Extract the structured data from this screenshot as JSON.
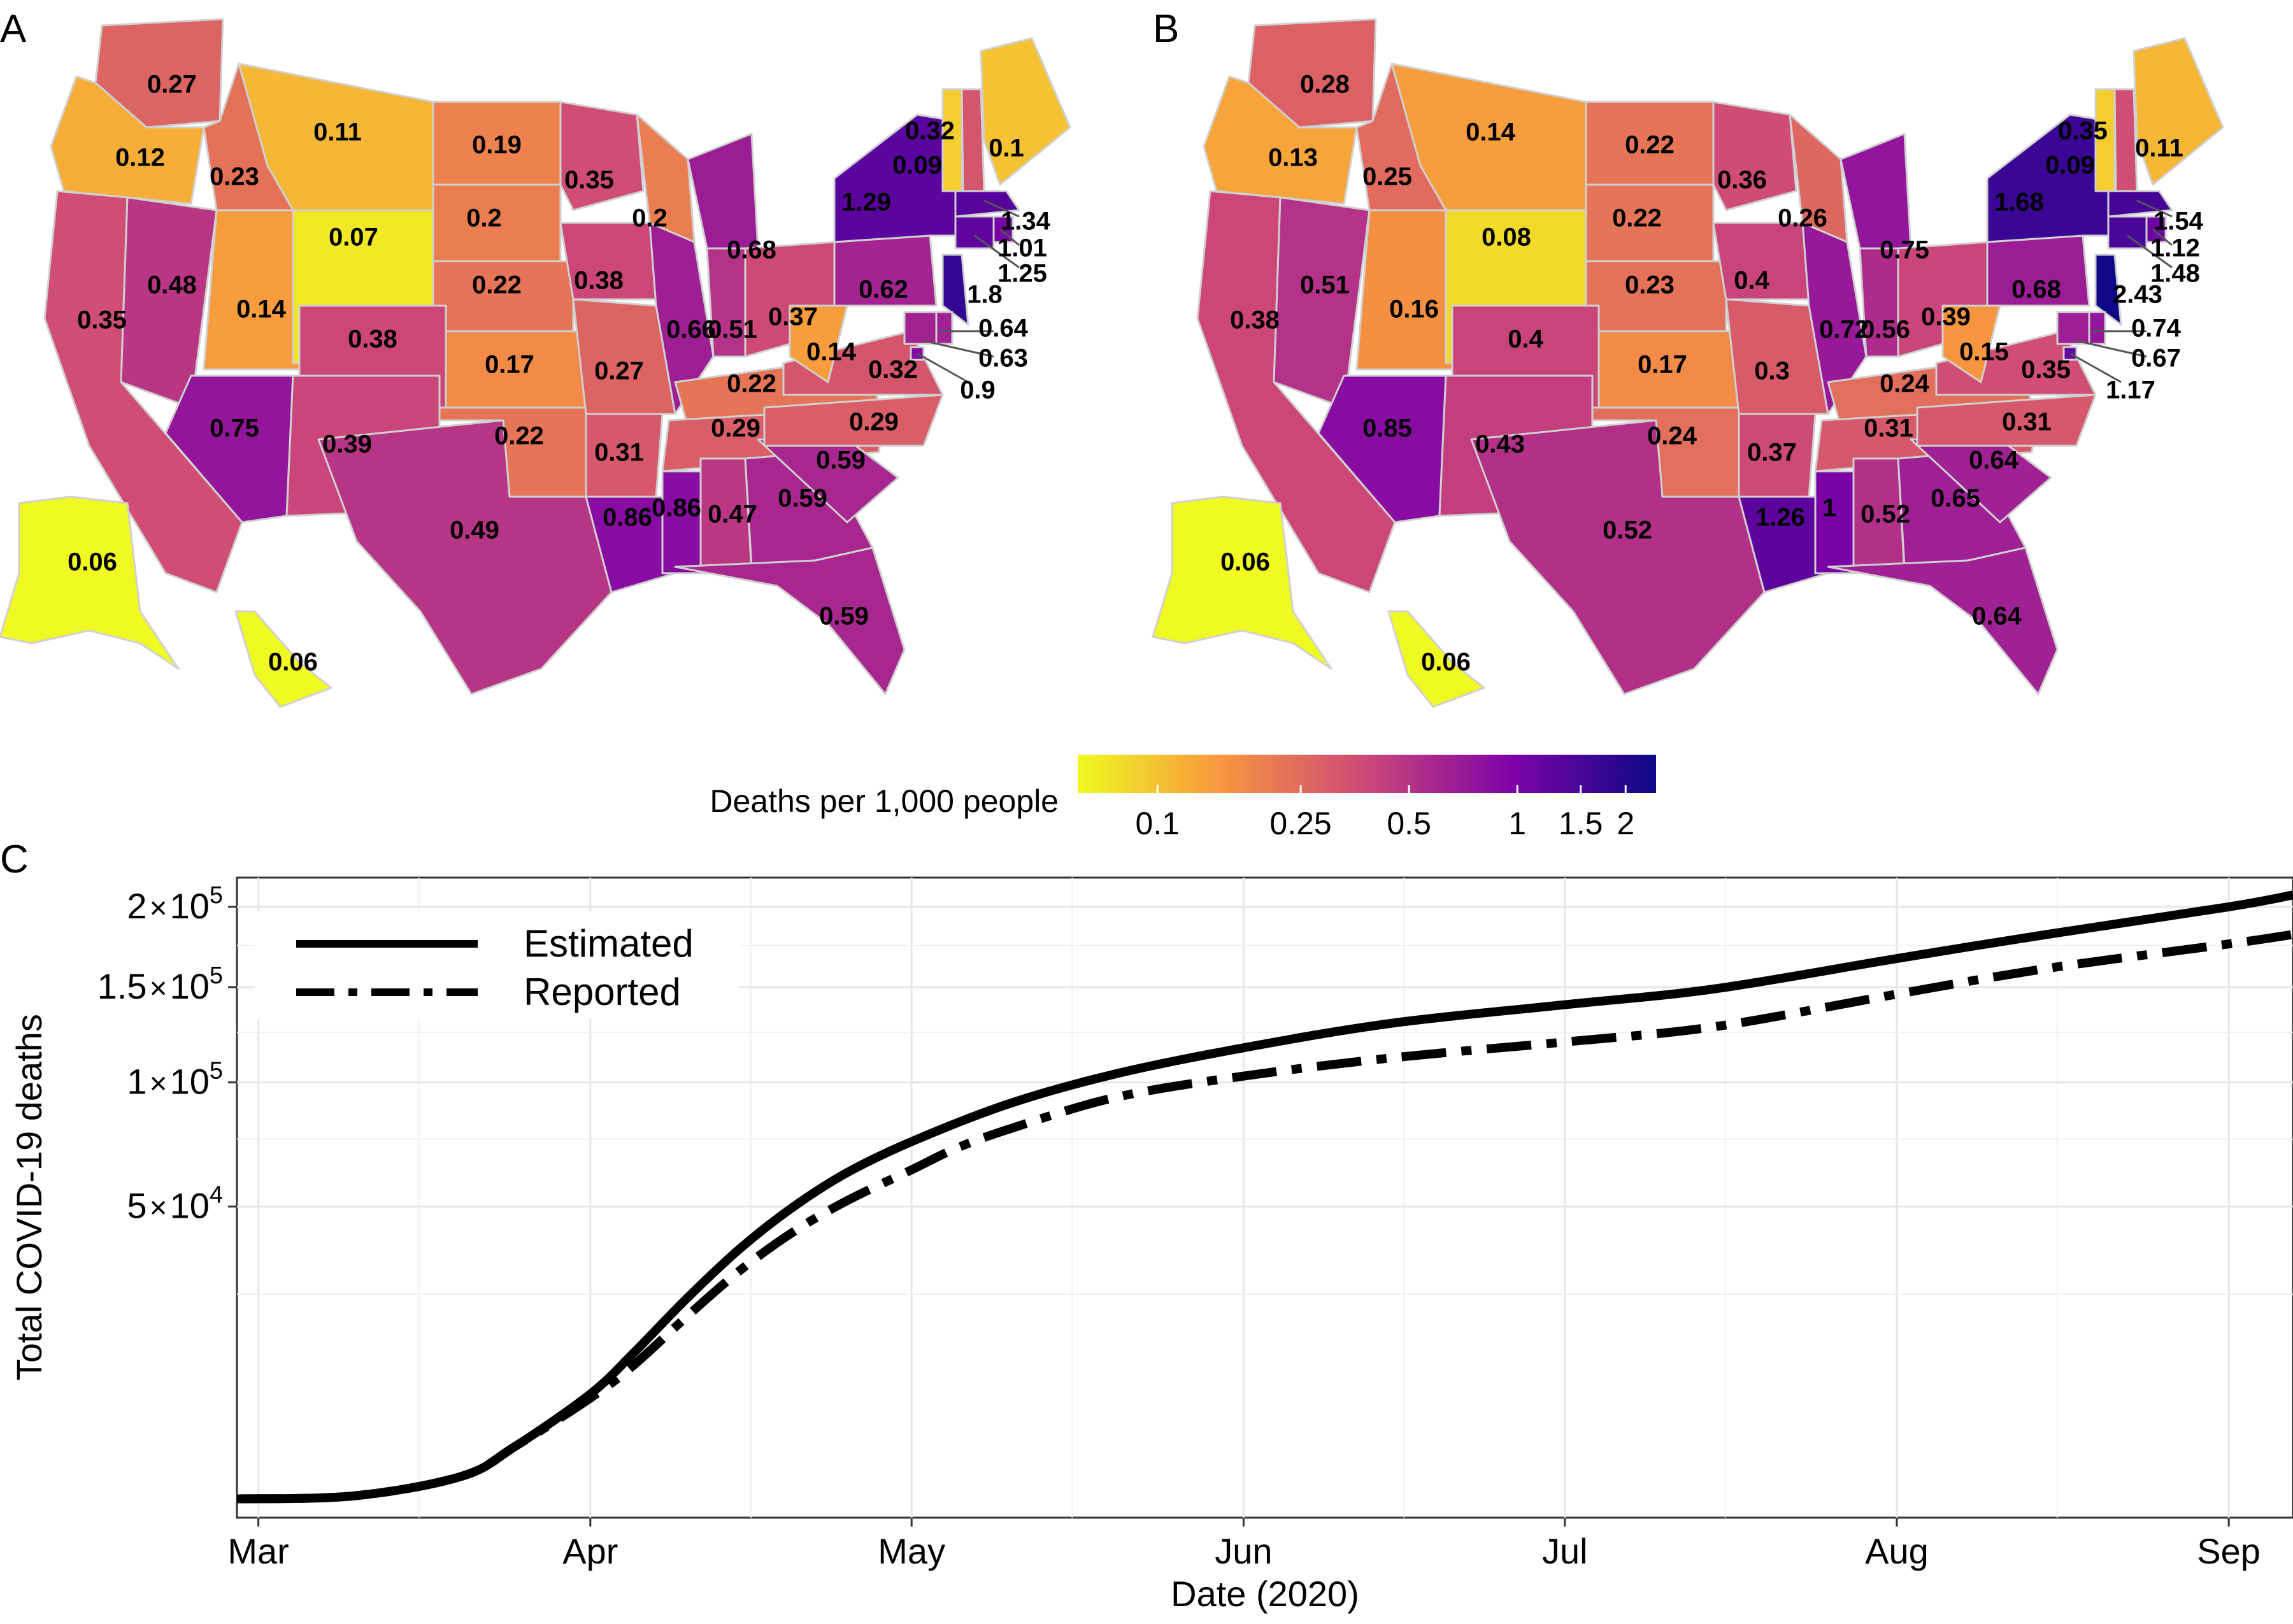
{
  "panels": {
    "a": "A",
    "b": "B",
    "c": "C"
  },
  "colorbar": {
    "title": "Deaths per 1,000 people",
    "ticks": [
      "0.1",
      "0.25",
      "0.5",
      "1",
      "1.5",
      "2"
    ],
    "tick_values": [
      0.1,
      0.25,
      0.5,
      1,
      1.5,
      2
    ],
    "range": [
      0.06,
      2.43
    ],
    "scale": "log",
    "colors": [
      "#f0f921",
      "#f89540",
      "#cc4778",
      "#7e03a8",
      "#0d0887"
    ]
  },
  "chart_data": [
    {
      "type": "choropleth",
      "panel": "A",
      "states": {
        "WA": "0.27",
        "OR": "0.12",
        "CA": "0.35",
        "ID": "0.23",
        "NV": "0.48",
        "MT": "0.11",
        "WY": "0.07",
        "UT": "0.14",
        "AZ": "0.75",
        "CO": "0.38",
        "NM": "0.39",
        "ND": "0.19",
        "SD": "0.2",
        "NE": "0.22",
        "KS": "0.17",
        "OK": "0.22",
        "TX": "0.49",
        "MN": "0.35",
        "IA": "0.38",
        "MO": "0.27",
        "AR": "0.31",
        "LA": "0.86",
        "WI": "0.2",
        "IL": "0.66",
        "MI": "0.68",
        "IN": "0.51",
        "OH": "0.37",
        "KY": "0.22",
        "TN": "0.29",
        "MS": "0.86",
        "AL": "0.47",
        "GA": "0.59",
        "FL": "0.59",
        "SC": "0.59",
        "NC": "0.29",
        "VA": "0.32",
        "WV": "0.14",
        "PA": "0.62",
        "NY": "1.29",
        "VT": "0.09",
        "NH": "0.32",
        "ME": "0.1",
        "MA": "1.34",
        "RI": "1.01",
        "CT": "1.25",
        "NJ": "1.8",
        "DE": "0.64",
        "MD": "0.63",
        "DC": "0.9",
        "AK": "0.06",
        "HI": "0.06"
      }
    },
    {
      "type": "choropleth",
      "panel": "B",
      "states": {
        "WA": "0.28",
        "OR": "0.13",
        "CA": "0.38",
        "ID": "0.25",
        "NV": "0.51",
        "MT": "0.14",
        "WY": "0.08",
        "UT": "0.16",
        "AZ": "0.85",
        "CO": "0.4",
        "NM": "0.43",
        "ND": "0.22",
        "SD": "0.22",
        "NE": "0.23",
        "KS": "0.17",
        "OK": "0.24",
        "TX": "0.52",
        "MN": "0.36",
        "IA": "0.4",
        "MO": "0.3",
        "AR": "0.37",
        "LA": "1.26",
        "WI": "0.26",
        "IL": "0.72",
        "MI": "0.75",
        "IN": "0.56",
        "OH": "0.39",
        "KY": "0.24",
        "TN": "0.31",
        "MS": "1",
        "AL": "0.52",
        "GA": "0.65",
        "FL": "0.64",
        "SC": "0.64",
        "NC": "0.31",
        "VA": "0.35",
        "WV": "0.15",
        "PA": "0.68",
        "NY": "1.68",
        "VT": "0.09",
        "NH": "0.35",
        "ME": "0.11",
        "MA": "1.54",
        "RI": "1.12",
        "CT": "1.48",
        "NJ": "2.43",
        "DE": "0.74",
        "MD": "0.67",
        "DC": "1.17",
        "AK": "0.06",
        "HI": "0.06"
      }
    },
    {
      "type": "line",
      "panel": "C",
      "xlabel": "Date (2020)",
      "ylabel": "Total COVID-19 deaths",
      "x_ticks": [
        "Mar",
        "Apr",
        "May",
        "Jun",
        "Jul",
        "Aug",
        "Sep"
      ],
      "x_tick_dates": [
        "2020-03-01",
        "2020-04-01",
        "2020-05-01",
        "2020-06-01",
        "2020-07-01",
        "2020-08-01",
        "2020-09-01"
      ],
      "xlim": [
        "2020-02-28",
        "2020-09-07"
      ],
      "y_scale": "sqrt",
      "ylim": [
        0,
        220000
      ],
      "y_ticks": [
        {
          "value": 50000,
          "mantissa": "5",
          "exponent": "4"
        },
        {
          "value": 100000,
          "mantissa": "1",
          "exponent": "5"
        },
        {
          "value": 150000,
          "mantissa": "1.5",
          "exponent": "5"
        },
        {
          "value": 200000,
          "mantissa": "2",
          "exponent": "5"
        }
      ],
      "times_sign": "×",
      "base": "10",
      "grid": true,
      "legend_position": "top-left",
      "series": [
        {
          "name": "Estimated",
          "style": "solid",
          "x": [
            "2020-02-28",
            "2020-03-10",
            "2020-03-20",
            "2020-03-25",
            "2020-04-01",
            "2020-04-05",
            "2020-04-10",
            "2020-04-15",
            "2020-04-20",
            "2020-04-25",
            "2020-05-01",
            "2020-05-10",
            "2020-05-20",
            "2020-06-01",
            "2020-06-15",
            "2020-07-01",
            "2020-07-15",
            "2020-08-01",
            "2020-08-15",
            "2020-09-01",
            "2020-09-07"
          ],
          "values": [
            30,
            60,
            500,
            2000,
            7000,
            13000,
            24000,
            37000,
            50000,
            62000,
            74000,
            90000,
            104000,
            117000,
            130000,
            140000,
            149000,
            167000,
            182000,
            200000,
            208000
          ]
        },
        {
          "name": "Reported",
          "style": "dashdot",
          "x": [
            "2020-02-28",
            "2020-03-10",
            "2020-03-20",
            "2020-03-25",
            "2020-04-01",
            "2020-04-05",
            "2020-04-10",
            "2020-04-15",
            "2020-04-20",
            "2020-04-25",
            "2020-05-01",
            "2020-05-05",
            "2020-05-10",
            "2020-05-20",
            "2020-06-01",
            "2020-06-15",
            "2020-07-01",
            "2020-07-15",
            "2020-08-01",
            "2020-08-15",
            "2020-09-01",
            "2020-09-07"
          ],
          "values": [
            30,
            60,
            500,
            2000,
            6500,
            11000,
            20000,
            31000,
            42000,
            52000,
            63000,
            71000,
            79000,
            93000,
            103000,
            112000,
            120000,
            128000,
            146000,
            161000,
            176000,
            182000
          ]
        }
      ]
    }
  ]
}
